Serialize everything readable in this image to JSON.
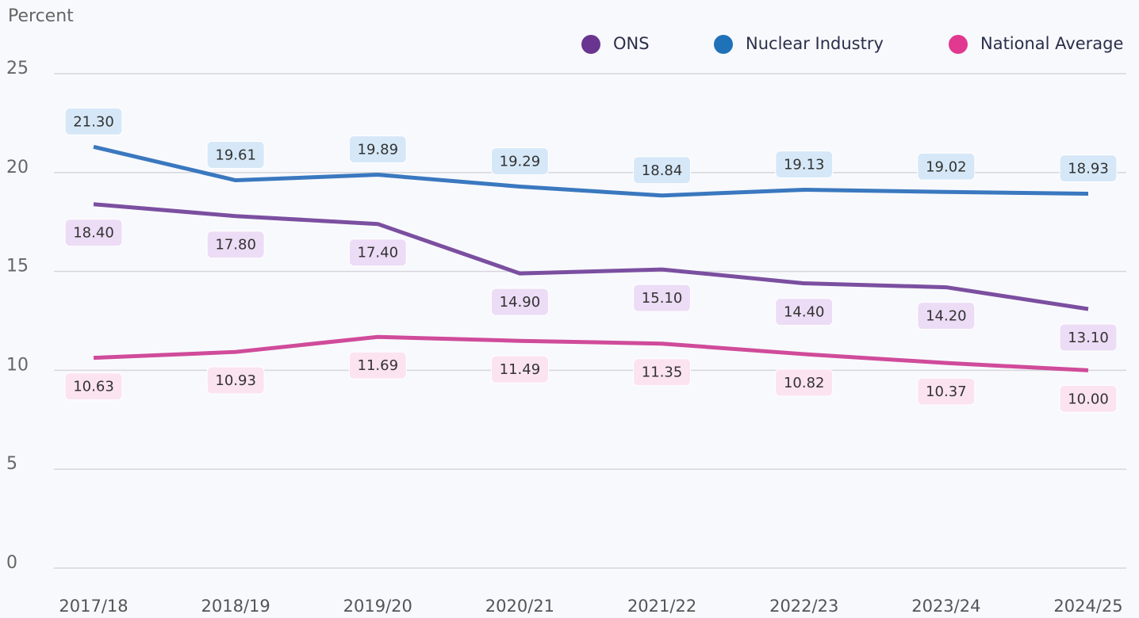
{
  "chart_data": {
    "type": "line",
    "y_label": "Percent",
    "categories": [
      "2017/18",
      "2018/19",
      "2019/20",
      "2020/21",
      "2021/22",
      "2022/23",
      "2023/24",
      "2024/25"
    ],
    "series": [
      {
        "name": "ONS",
        "color": "#7b4fa0",
        "legend_color": "#6a3590",
        "label_fill": "#ecdcf5",
        "label_position": "below",
        "values": [
          18.4,
          17.8,
          17.4,
          14.9,
          15.1,
          14.4,
          14.2,
          13.1
        ],
        "value_labels": [
          "18.40",
          "17.80",
          "17.40",
          "14.90",
          "15.10",
          "14.40",
          "14.20",
          "13.10"
        ]
      },
      {
        "name": "Nuclear Industry",
        "color": "#3a78bf",
        "legend_color": "#1f72b8",
        "label_fill": "#d6e8f8",
        "label_position": "above",
        "values": [
          21.3,
          19.61,
          19.89,
          19.29,
          18.84,
          19.13,
          19.02,
          18.93
        ],
        "value_labels": [
          "21.30",
          "19.61",
          "19.89",
          "19.29",
          "18.84",
          "19.13",
          "19.02",
          "18.93"
        ]
      },
      {
        "name": "National Average",
        "color": "#d04b9a",
        "legend_color": "#e0398f",
        "label_fill": "#fbe3f0",
        "label_position": "below",
        "values": [
          10.63,
          10.93,
          11.69,
          11.49,
          11.35,
          10.82,
          10.37,
          10.0
        ],
        "value_labels": [
          "10.63",
          "10.93",
          "11.69",
          "11.49",
          "11.35",
          "10.82",
          "10.37",
          "10.00"
        ]
      }
    ],
    "ylim": [
      0,
      25
    ],
    "yticks": [
      0,
      5,
      10,
      15,
      20,
      25
    ],
    "grid": true,
    "legend": "top-right"
  }
}
